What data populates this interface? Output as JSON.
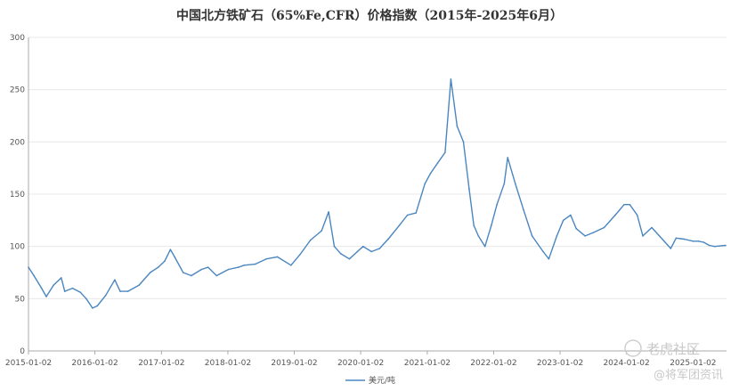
{
  "chart_data": {
    "type": "line",
    "title": "中国北方铁矿石（65%Fe,CFR）价格指数（2015年-2025年6月）",
    "xlabel": "",
    "ylabel": "",
    "ylim": [
      0,
      300
    ],
    "yticks": [
      "0",
      "50",
      "100",
      "150",
      "200",
      "250",
      "300"
    ],
    "xticks": [
      "2015-01-02",
      "2016-01-02",
      "2017-01-02",
      "2018-01-02",
      "2019-01-02",
      "2020-01-02",
      "2021-01-02",
      "2022-01-02",
      "2023-01-02",
      "2024-01-02",
      "2025-01-02"
    ],
    "grid": "horizontal",
    "legend_position": "bottom-center",
    "series": [
      {
        "name": "美元/吨",
        "color": "#4a86c0",
        "points": [
          [
            "2015-01-02",
            80
          ],
          [
            "2015-02-01",
            72
          ],
          [
            "2015-03-15",
            60
          ],
          [
            "2015-04-10",
            52
          ],
          [
            "2015-05-20",
            63
          ],
          [
            "2015-07-01",
            70
          ],
          [
            "2015-07-20",
            57
          ],
          [
            "2015-09-01",
            60
          ],
          [
            "2015-10-15",
            56
          ],
          [
            "2015-11-15",
            50
          ],
          [
            "2015-12-20",
            41
          ],
          [
            "2016-01-15",
            43
          ],
          [
            "2016-03-01",
            53
          ],
          [
            "2016-04-20",
            68
          ],
          [
            "2016-05-20",
            57
          ],
          [
            "2016-07-01",
            57
          ],
          [
            "2016-09-01",
            63
          ],
          [
            "2016-11-01",
            75
          ],
          [
            "2016-12-15",
            80
          ],
          [
            "2017-01-20",
            86
          ],
          [
            "2017-02-20",
            97
          ],
          [
            "2017-03-15",
            90
          ],
          [
            "2017-05-01",
            75
          ],
          [
            "2017-06-15",
            72
          ],
          [
            "2017-08-10",
            78
          ],
          [
            "2017-09-15",
            80
          ],
          [
            "2017-11-01",
            72
          ],
          [
            "2018-01-05",
            78
          ],
          [
            "2018-03-01",
            80
          ],
          [
            "2018-04-01",
            82
          ],
          [
            "2018-06-01",
            83
          ],
          [
            "2018-08-01",
            88
          ],
          [
            "2018-10-01",
            90
          ],
          [
            "2018-12-15",
            82
          ],
          [
            "2019-02-01",
            92
          ],
          [
            "2019-04-01",
            106
          ],
          [
            "2019-06-01",
            115
          ],
          [
            "2019-07-10",
            133
          ],
          [
            "2019-08-10",
            100
          ],
          [
            "2019-09-15",
            93
          ],
          [
            "2019-11-01",
            88
          ],
          [
            "2019-12-15",
            95
          ],
          [
            "2020-01-15",
            100
          ],
          [
            "2020-03-01",
            95
          ],
          [
            "2020-04-15",
            98
          ],
          [
            "2020-06-01",
            107
          ],
          [
            "2020-08-01",
            120
          ],
          [
            "2020-09-15",
            130
          ],
          [
            "2020-11-01",
            132
          ],
          [
            "2020-12-20",
            160
          ],
          [
            "2021-01-20",
            170
          ],
          [
            "2021-03-01",
            180
          ],
          [
            "2021-04-10",
            190
          ],
          [
            "2021-05-12",
            260
          ],
          [
            "2021-06-15",
            215
          ],
          [
            "2021-07-20",
            200
          ],
          [
            "2021-08-20",
            155
          ],
          [
            "2021-09-15",
            120
          ],
          [
            "2021-10-10",
            110
          ],
          [
            "2021-11-15",
            100
          ],
          [
            "2021-12-20",
            120
          ],
          [
            "2022-01-20",
            140
          ],
          [
            "2022-03-01",
            160
          ],
          [
            "2022-03-20",
            185
          ],
          [
            "2022-05-01",
            160
          ],
          [
            "2022-06-15",
            135
          ],
          [
            "2022-08-01",
            110
          ],
          [
            "2022-10-01",
            95
          ],
          [
            "2022-11-01",
            88
          ],
          [
            "2022-12-15",
            110
          ],
          [
            "2023-01-20",
            125
          ],
          [
            "2023-03-01",
            130
          ],
          [
            "2023-04-01",
            117
          ],
          [
            "2023-05-20",
            110
          ],
          [
            "2023-07-01",
            113
          ],
          [
            "2023-09-01",
            118
          ],
          [
            "2023-11-01",
            130
          ],
          [
            "2023-12-20",
            140
          ],
          [
            "2024-01-20",
            140
          ],
          [
            "2024-03-01",
            130
          ],
          [
            "2024-04-01",
            110
          ],
          [
            "2024-05-20",
            118
          ],
          [
            "2024-07-01",
            110
          ],
          [
            "2024-09-01",
            98
          ],
          [
            "2024-10-01",
            108
          ],
          [
            "2024-11-15",
            107
          ],
          [
            "2025-01-02",
            105
          ],
          [
            "2025-02-01",
            105
          ],
          [
            "2025-03-01",
            104
          ],
          [
            "2025-04-01",
            101
          ],
          [
            "2025-05-01",
            100
          ],
          [
            "2025-06-30",
            101
          ]
        ]
      }
    ]
  },
  "watermark": {
    "line1": "老虎社区",
    "line2": "@将军团资讯"
  }
}
